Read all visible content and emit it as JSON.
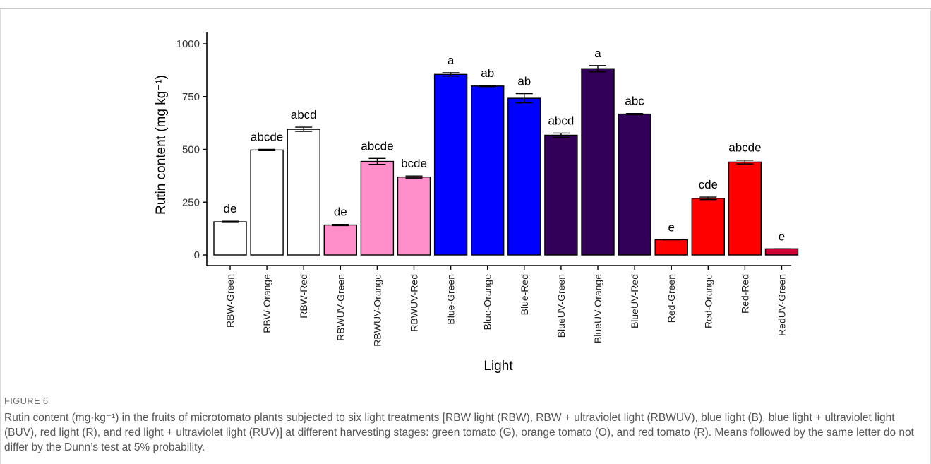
{
  "figure": {
    "label": "FIGURE 6",
    "caption": "Rutin content (mg·kg⁻¹) in the fruits of microtomato plants subjected to six light treatments [RBW light (RBW), RBW + ultraviolet light (RBWUV), blue light (B), blue light + ultraviolet light (BUV), red light (R), and red light + ultraviolet light (RUV)] at different harvesting stages: green tomato (G), orange tomato (O), and red tomato (R). Means followed by the same letter do not differ by the Dunn’s test at 5% probability."
  },
  "chart_data": {
    "type": "bar",
    "xlabel": "Light",
    "ylabel": "Rutin content (mg kg⁻¹)",
    "ylim": [
      0,
      1000
    ],
    "yticks": [
      0,
      250,
      500,
      750,
      1000
    ],
    "grid": false,
    "categories": [
      "RBW-Green",
      "RBW-Orange",
      "RBW-Red",
      "RBWUV-Green",
      "RBWUV-Orange",
      "RBWUV-Red",
      "Blue-Green",
      "Blue-Orange",
      "Blue-Red",
      "BlueUV-Green",
      "BlueUV-Orange",
      "BlueUV-Red",
      "Red-Green",
      "Red-Orange",
      "Red-Red",
      "RedUV-Green"
    ],
    "values": [
      157,
      497,
      595,
      142,
      443,
      369,
      855,
      800,
      742,
      567,
      882,
      667,
      72,
      268,
      440,
      29
    ],
    "errors": [
      3,
      3,
      10,
      3,
      14,
      5,
      8,
      3,
      22,
      10,
      15,
      3,
      0,
      6,
      9,
      0
    ],
    "letters": [
      "de",
      "abcde",
      "abcd",
      "de",
      "abcde",
      "bcde",
      "a",
      "ab",
      "ab",
      "abcd",
      "a",
      "abc",
      "e",
      "cde",
      "abcde",
      "e"
    ],
    "colors": [
      "#ffffff",
      "#ffffff",
      "#ffffff",
      "#ff8fcb",
      "#ff8fcb",
      "#ff8fcb",
      "#0000ff",
      "#0000ff",
      "#0000ff",
      "#320059",
      "#320059",
      "#320059",
      "#ff0000",
      "#ff0000",
      "#ff0000",
      "#cc0033"
    ]
  }
}
